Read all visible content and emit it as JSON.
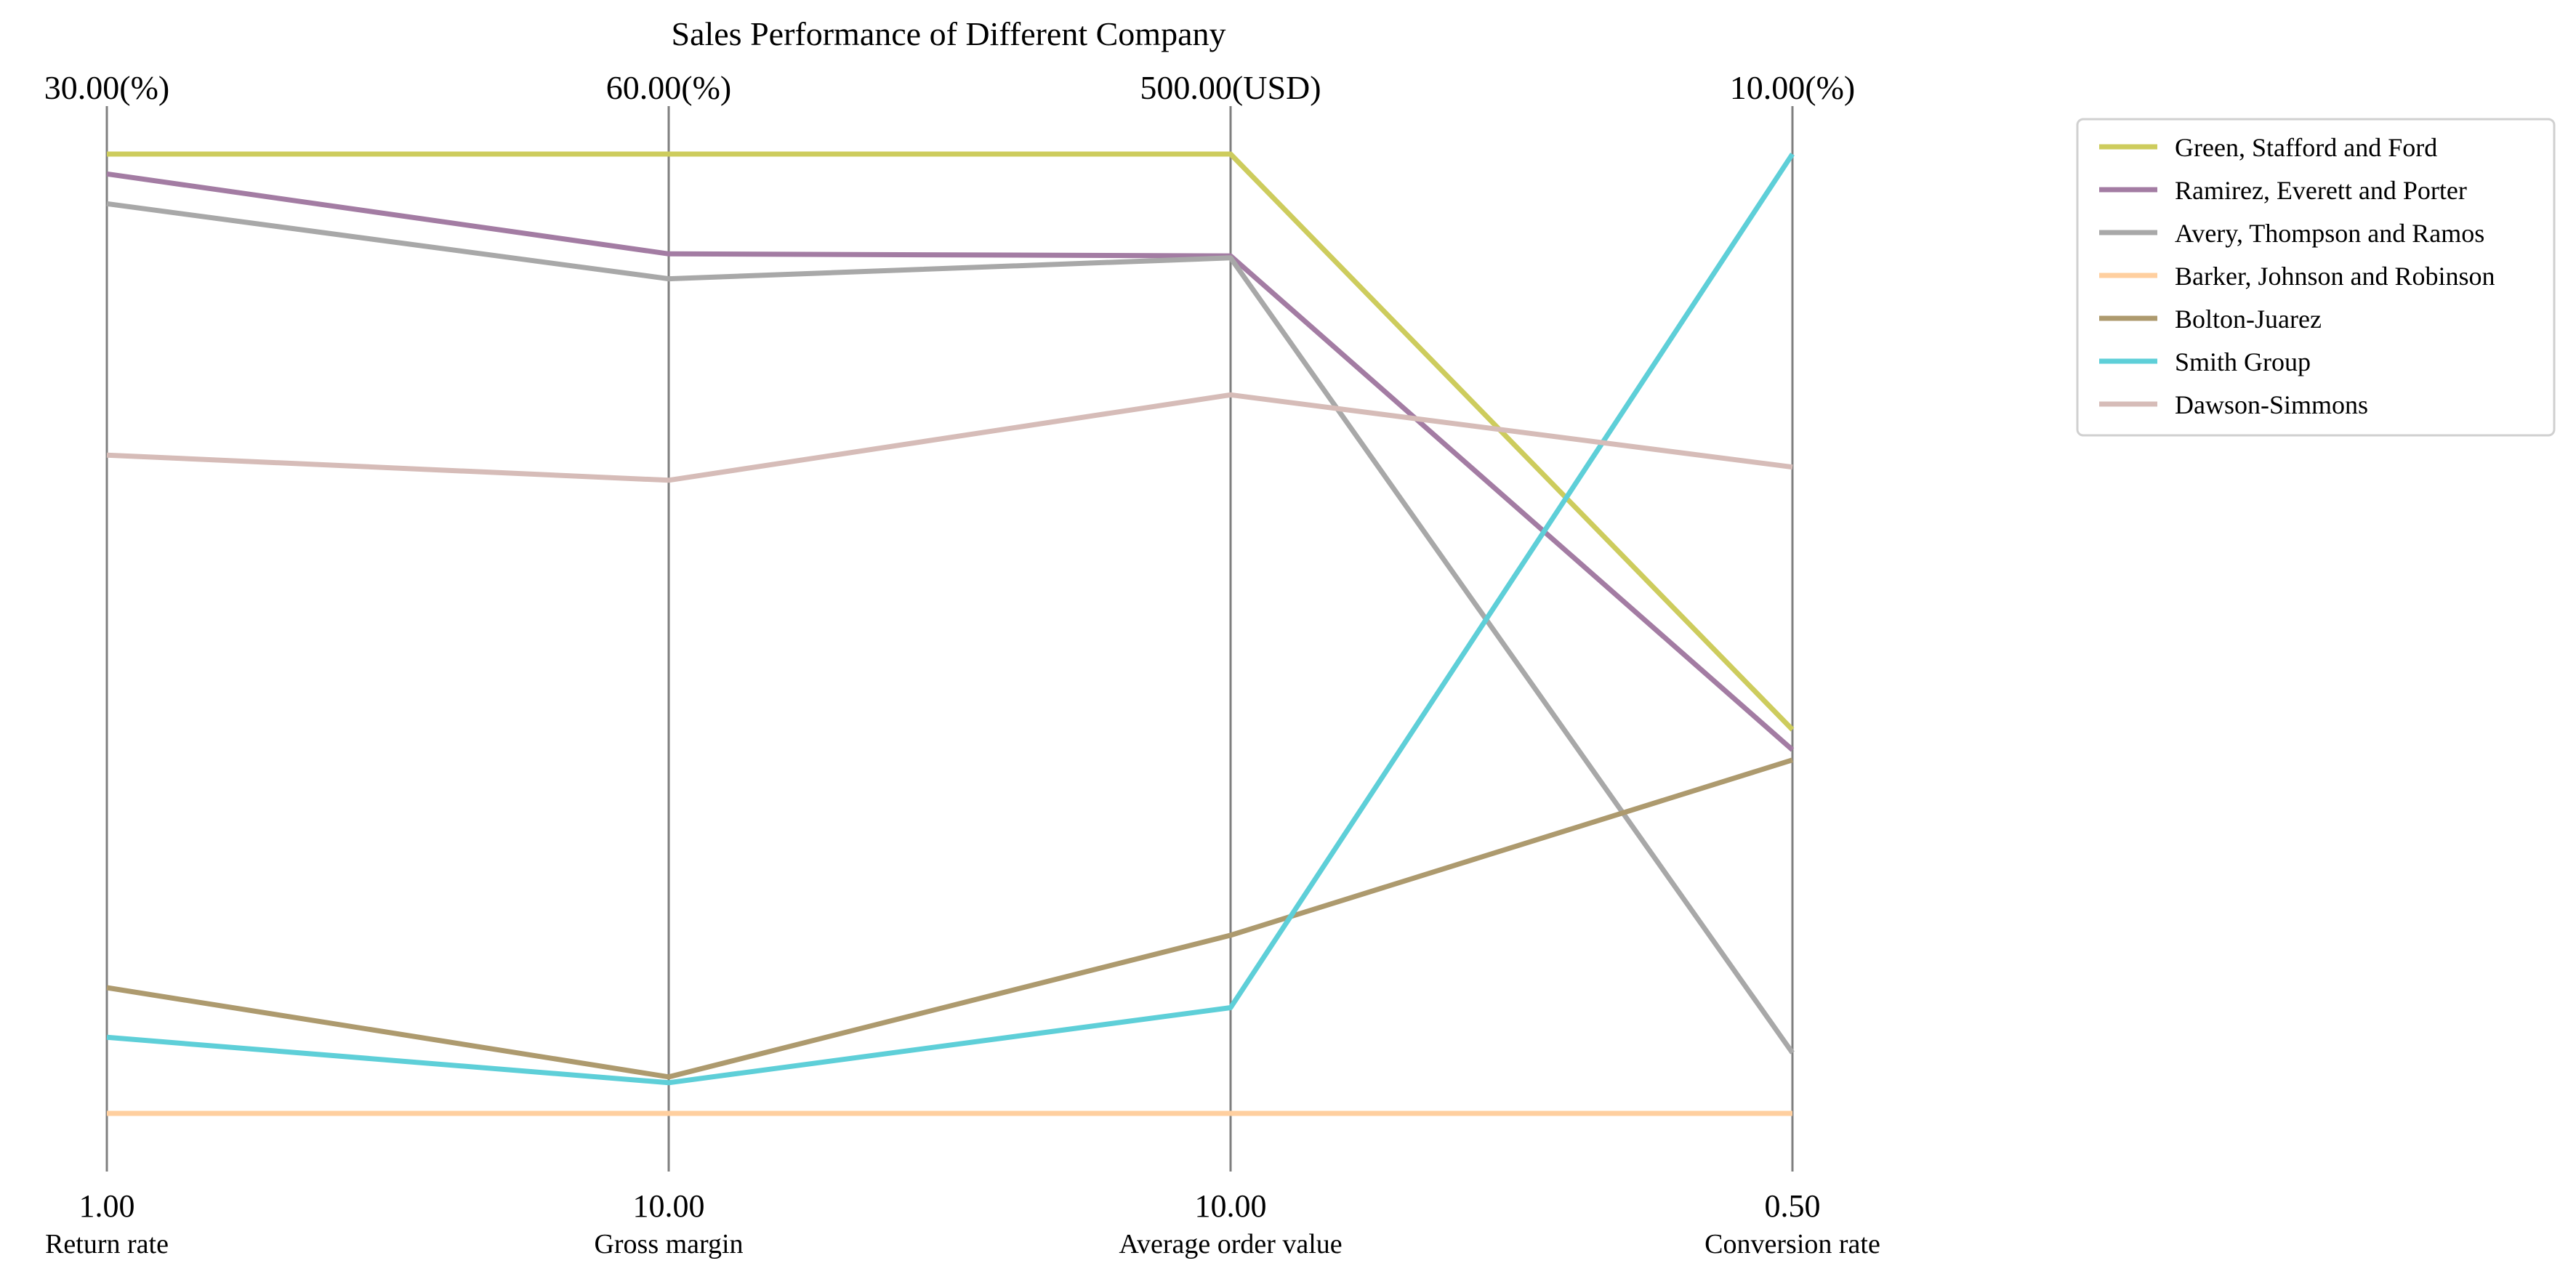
{
  "chart_data": {
    "type": "parallel-coordinates",
    "title": "Sales Performance of Different Company",
    "axes": [
      {
        "name": "Return rate",
        "min": 1.0,
        "max": 30.0,
        "min_label": "1.00",
        "max_label": "30.00(%)"
      },
      {
        "name": "Gross margin",
        "min": 10.0,
        "max": 60.0,
        "min_label": "10.00",
        "max_label": "60.00(%)"
      },
      {
        "name": "Average order value",
        "min": 10.0,
        "max": 500.0,
        "min_label": "10.00",
        "max_label": "500.00(USD)"
      },
      {
        "name": "Conversion rate",
        "min": 0.5,
        "max": 10.0,
        "min_label": "0.50",
        "max_label": "10.00(%)"
      }
    ],
    "series": [
      {
        "name": "Green, Stafford and Ford",
        "color": "#cdcc5d",
        "values": [
          30.0,
          60.0,
          500.0,
          4.3
        ]
      },
      {
        "name": "Ramirez, Everett and Porter",
        "color": "#a37ca3",
        "values": [
          29.4,
          54.8,
          448.0,
          4.1
        ]
      },
      {
        "name": "Avery, Thompson and Ramos",
        "color": "#a8a8a8",
        "values": [
          28.5,
          53.5,
          447.0,
          1.1
        ]
      },
      {
        "name": "Barker, Johnson and Robinson",
        "color": "#ffcf9f",
        "values": [
          1.0,
          10.0,
          10.0,
          0.5
        ]
      },
      {
        "name": "Bolton-Juarez",
        "color": "#ad9a6e",
        "values": [
          4.8,
          11.9,
          101.0,
          4.0
        ]
      },
      {
        "name": "Smith Group",
        "color": "#5ecfd8",
        "values": [
          3.3,
          11.6,
          64.0,
          10.0
        ]
      },
      {
        "name": "Dawson-Simmons",
        "color": "#d6bcb8",
        "values": [
          20.9,
          43.0,
          377.0,
          6.9
        ]
      }
    ],
    "legend_position": "top-right",
    "grid": false
  }
}
